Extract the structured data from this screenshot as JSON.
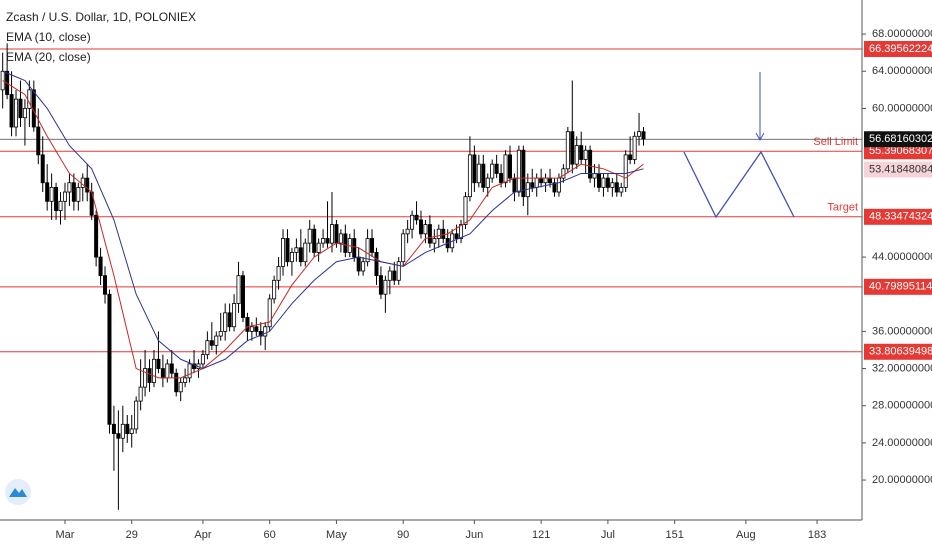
{
  "chart_data": {
    "type": "candlestick",
    "title": "Zcash / U.S. Dollar, 1D, POLONIEX",
    "xlim": [
      -0.6,
      193.1
    ],
    "ylim": [
      15.7,
      71.67
    ],
    "xticks": [
      {
        "value": 14,
        "label": "Mar"
      },
      29,
      {
        "value": 45,
        "label": "Apr"
      },
      60,
      {
        "value": 75,
        "label": "May"
      },
      90,
      {
        "value": 106,
        "label": "Jun"
      },
      121,
      {
        "value": 136,
        "label": "Jul"
      },
      151,
      {
        "value": 167,
        "label": "Aug"
      },
      183
    ],
    "yticks": [
      {
        "value": 20,
        "label": "20.00000000"
      },
      {
        "value": 24,
        "label": "24.00000000"
      },
      {
        "value": 28,
        "label": "28.00000000"
      },
      {
        "value": 32,
        "label": "32.00000000"
      },
      {
        "value": 36,
        "label": "36.00000000"
      },
      {
        "value": 44,
        "label": "44.00000000"
      },
      {
        "value": 60,
        "label": "60.00000000"
      },
      {
        "value": 64,
        "label": "64.00000000"
      },
      {
        "value": 68,
        "label": "68.00000000"
      }
    ],
    "up_color": "#ffffff",
    "down_color": "#000000",
    "ohlc": [
      [
        62,
        66,
        60,
        64
      ],
      [
        64,
        67,
        61,
        61.5
      ],
      [
        61.5,
        64,
        57,
        58
      ],
      [
        58,
        62,
        57,
        61
      ],
      [
        61,
        63,
        58,
        59
      ],
      [
        59,
        61,
        56,
        60
      ],
      [
        60,
        63,
        58,
        62
      ],
      [
        62,
        63,
        57.5,
        58
      ],
      [
        58,
        60,
        54,
        55
      ],
      [
        55,
        57,
        51,
        52
      ],
      [
        52,
        54,
        49,
        50
      ],
      [
        50,
        53,
        48,
        51.5
      ],
      [
        51.5,
        52,
        48,
        49
      ],
      [
        49,
        51,
        47.5,
        50
      ],
      [
        50,
        52,
        48,
        51
      ],
      [
        51,
        53,
        49.5,
        52
      ],
      [
        52,
        53,
        49,
        50
      ],
      [
        50,
        52,
        49,
        51.5
      ],
      [
        51.5,
        53,
        50,
        52.5
      ],
      [
        52.5,
        54,
        50,
        51
      ],
      [
        51,
        52,
        48,
        48.5
      ],
      [
        48.5,
        49,
        43,
        44
      ],
      [
        44,
        45,
        41,
        42
      ],
      [
        42,
        43,
        39,
        40
      ],
      [
        40,
        40.5,
        25,
        26
      ],
      [
        26,
        28,
        21,
        25
      ],
      [
        25,
        27.5,
        16.8,
        24.5
      ],
      [
        24.5,
        28,
        23,
        26
      ],
      [
        26,
        27,
        24,
        25
      ],
      [
        25,
        27,
        23.5,
        25.5
      ],
      [
        25.5,
        29,
        25,
        28.5
      ],
      [
        28.5,
        33,
        27.5,
        30
      ],
      [
        30,
        34,
        29,
        32
      ],
      [
        32,
        33,
        29.5,
        30.5
      ],
      [
        30.5,
        34,
        30,
        33
      ],
      [
        33,
        36,
        31.5,
        32
      ],
      [
        32,
        33.5,
        30,
        31
      ],
      [
        31,
        33,
        30.5,
        32.5
      ],
      [
        32.5,
        34,
        31,
        31.5
      ],
      [
        31.5,
        32,
        29,
        29.5
      ],
      [
        29.5,
        31,
        28.5,
        30.5
      ],
      [
        30.5,
        32,
        30,
        31
      ],
      [
        31,
        33,
        30.5,
        32.5
      ],
      [
        32.5,
        34,
        31.5,
        32
      ],
      [
        32,
        33,
        31,
        32.5
      ],
      [
        32.5,
        34,
        32,
        33.5
      ],
      [
        33.5,
        36,
        33,
        35
      ],
      [
        35,
        37,
        34,
        34.5
      ],
      [
        34.5,
        36,
        33.5,
        35.5
      ],
      [
        35.5,
        38,
        35,
        36
      ],
      [
        36,
        39,
        35,
        38
      ],
      [
        38,
        39,
        36,
        36.5
      ],
      [
        36.5,
        40,
        36,
        39
      ],
      [
        39,
        43.5,
        38,
        42
      ],
      [
        42,
        42.5,
        37,
        37.5
      ],
      [
        37.5,
        38,
        35,
        36
      ],
      [
        36,
        37,
        35,
        36.5
      ],
      [
        36.5,
        37.5,
        35.5,
        36
      ],
      [
        36,
        37,
        34.5,
        35.5
      ],
      [
        35.5,
        37,
        34,
        36.5
      ],
      [
        36.5,
        40,
        36,
        39.5
      ],
      [
        39.5,
        42,
        39,
        41.5
      ],
      [
        41.5,
        44,
        40.5,
        43
      ],
      [
        43,
        47,
        42,
        46
      ],
      [
        46,
        47,
        43,
        43.5
      ],
      [
        43.5,
        45,
        42,
        44.5
      ],
      [
        44.5,
        46,
        43.5,
        45
      ],
      [
        45,
        47,
        43,
        43.5
      ],
      [
        43.5,
        46,
        43,
        45.5
      ],
      [
        45.5,
        48,
        44.5,
        47
      ],
      [
        47,
        47.5,
        44,
        44.5
      ],
      [
        44.5,
        46,
        43.5,
        45.5
      ],
      [
        45.5,
        47,
        45,
        46
      ],
      [
        46,
        50,
        45,
        45.5
      ],
      [
        45.5,
        51,
        44.5,
        47.5
      ],
      [
        47.5,
        48,
        45,
        45.5
      ],
      [
        45.5,
        47,
        44.5,
        46.5
      ],
      [
        46.5,
        47.5,
        44,
        44.5
      ],
      [
        44.5,
        46.5,
        44,
        46
      ],
      [
        46,
        47,
        43.5,
        44
      ],
      [
        44,
        45,
        42,
        42.5
      ],
      [
        42.5,
        44,
        42,
        43.5
      ],
      [
        43.5,
        47,
        43,
        46
      ],
      [
        46,
        47,
        44,
        44.5
      ],
      [
        44.5,
        45,
        41,
        42
      ],
      [
        42,
        43,
        39.5,
        40
      ],
      [
        40,
        42,
        38,
        41.5
      ],
      [
        41.5,
        43,
        40,
        42.5
      ],
      [
        42.5,
        43.5,
        41,
        41.5
      ],
      [
        41.5,
        44,
        41,
        43.5
      ],
      [
        43.5,
        47,
        43,
        46.5
      ],
      [
        46.5,
        48,
        45.5,
        47
      ],
      [
        47,
        49,
        46,
        48.5
      ],
      [
        48.5,
        50,
        47.5,
        48
      ],
      [
        48,
        49,
        46,
        46.5
      ],
      [
        46.5,
        48,
        45.5,
        47.5
      ],
      [
        47.5,
        48.5,
        45,
        45.5
      ],
      [
        45.5,
        47,
        44.5,
        46
      ],
      [
        46,
        47.5,
        45,
        47
      ],
      [
        47,
        48,
        45.5,
        46
      ],
      [
        46,
        47,
        44.5,
        45
      ],
      [
        45,
        47,
        44.5,
        46.5
      ],
      [
        46.5,
        47.5,
        45.5,
        46
      ],
      [
        46,
        48,
        45.5,
        47.5
      ],
      [
        47.5,
        51,
        47,
        50.5
      ],
      [
        50.5,
        57,
        50,
        55
      ],
      [
        55,
        56,
        51,
        52
      ],
      [
        52,
        55,
        51.5,
        54
      ],
      [
        54,
        55,
        51,
        51.5
      ],
      [
        51.5,
        53,
        50.5,
        52.5
      ],
      [
        52.5,
        54.5,
        52,
        54
      ],
      [
        54,
        55,
        52.5,
        53
      ],
      [
        53,
        54,
        51.5,
        52
      ],
      [
        52,
        55.5,
        51.5,
        55
      ],
      [
        55,
        56,
        52,
        52.5
      ],
      [
        52.5,
        53,
        50,
        51
      ],
      [
        51,
        56,
        50.5,
        55.5
      ],
      [
        55.5,
        56,
        49.5,
        50.5
      ],
      [
        50.5,
        53,
        48.5,
        52
      ],
      [
        52,
        53.5,
        51,
        51.5
      ],
      [
        51.5,
        53,
        50.5,
        52.5
      ],
      [
        52.5,
        53.5,
        51.5,
        52
      ],
      [
        52,
        53,
        51,
        52.5
      ],
      [
        52.5,
        53.5,
        51.5,
        52
      ],
      [
        52,
        52.5,
        50.5,
        51
      ],
      [
        51,
        53,
        50.5,
        52.5
      ],
      [
        52.5,
        54,
        52,
        53.5
      ],
      [
        53.5,
        58,
        53,
        57.5
      ],
      [
        57.5,
        63,
        53,
        54
      ],
      [
        54,
        57,
        53.5,
        56
      ],
      [
        56,
        57.5,
        54,
        54.5
      ],
      [
        54.5,
        56,
        53,
        55.5
      ],
      [
        55.5,
        56,
        52,
        52.5
      ],
      [
        52.5,
        54,
        51.5,
        53
      ],
      [
        53,
        54,
        51,
        51.5
      ],
      [
        51.5,
        53,
        50.5,
        52.5
      ],
      [
        52.5,
        53,
        51,
        51.5
      ],
      [
        51.5,
        52.5,
        50.5,
        52
      ],
      [
        52,
        53,
        50.5,
        51
      ],
      [
        51,
        52,
        50.5,
        51.5
      ],
      [
        51.5,
        55.5,
        51,
        55
      ],
      [
        55,
        57,
        54,
        54.5
      ],
      [
        54.5,
        57.5,
        54,
        57
      ],
      [
        57,
        59.5,
        56,
        57.5
      ],
      [
        57.5,
        58,
        56,
        56.7
      ]
    ],
    "series": [
      {
        "name": "EMA (10, close)",
        "color": "#c62828",
        "x": [
          0,
          5,
          10,
          15,
          20,
          25,
          30,
          35,
          40,
          45,
          50,
          55,
          60,
          65,
          70,
          75,
          80,
          85,
          90,
          95,
          100,
          105,
          110,
          115,
          120,
          125,
          130,
          135,
          140,
          144
        ],
        "values": [
          63,
          61.5,
          57,
          53,
          51,
          42,
          32,
          31,
          31,
          32,
          34,
          36.5,
          37,
          41,
          44,
          45.5,
          45,
          43.5,
          43,
          46,
          46.5,
          48,
          51.5,
          52.5,
          52.5,
          52.5,
          54,
          53.5,
          52.5,
          54
        ]
      },
      {
        "name": "EMA (20, close)",
        "color": "#283593",
        "x": [
          0,
          5,
          10,
          15,
          20,
          25,
          30,
          35,
          40,
          45,
          50,
          55,
          60,
          65,
          70,
          75,
          80,
          85,
          90,
          95,
          100,
          105,
          110,
          115,
          120,
          125,
          130,
          135,
          140,
          144
        ],
        "values": [
          64,
          63,
          60,
          56,
          53.5,
          48,
          40,
          35,
          33,
          32,
          33,
          35,
          36,
          39,
          41.5,
          43.5,
          44,
          43.5,
          43,
          44.5,
          45.5,
          46.5,
          49,
          51,
          51.5,
          52,
          53,
          53,
          53,
          53.5
        ]
      }
    ],
    "levels": [
      {
        "value": 66.39562224,
        "label": "66.39562224"
      },
      {
        "value": 55.39068307,
        "label": "55.39068307",
        "note": "Sell Limit"
      },
      {
        "value": 48.33474324,
        "label": "48.33474324",
        "note": "Target"
      },
      {
        "value": 40.79895114,
        "label": "40.79895114"
      },
      {
        "value": 33.80639498,
        "label": "33.80639498"
      }
    ],
    "level_color": "#e53935",
    "last_price": {
      "value": 56.68160302,
      "label": "56.68160302"
    },
    "ema_marker": {
      "value": 53.41848084,
      "label": "53.41848084"
    }
  }
}
